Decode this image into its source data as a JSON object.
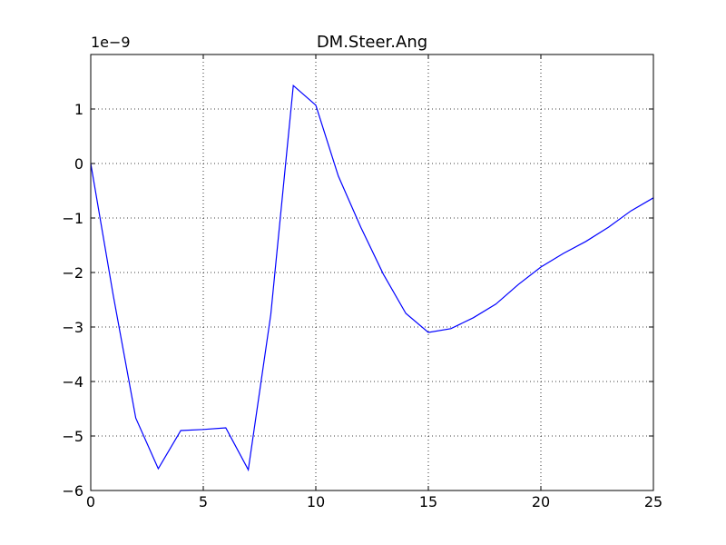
{
  "chart_data": {
    "type": "line",
    "title": "DM.Steer.Ang",
    "y_offset_label": "1e−9",
    "x": [
      0,
      1,
      2,
      3,
      4,
      5,
      6,
      7,
      8,
      9,
      10,
      11,
      12,
      13,
      14,
      15,
      16,
      17,
      18,
      19,
      20,
      21,
      22,
      23,
      24,
      25
    ],
    "values": [
      0,
      -2.42,
      -4.67,
      -5.6,
      -4.9,
      -4.88,
      -4.85,
      -5.62,
      -2.77,
      1.43,
      1.07,
      -0.23,
      -1.17,
      -2.03,
      -2.75,
      -3.1,
      -3.03,
      -2.83,
      -2.58,
      -2.22,
      -1.9,
      -1.65,
      -1.43,
      -1.17,
      -0.87,
      -0.63
    ],
    "color": "#0000ff",
    "xlim": [
      0,
      25
    ],
    "xticks": [
      0,
      5,
      10,
      15,
      20,
      25
    ],
    "ylim": [
      -6,
      2
    ],
    "yticks": [
      {
        "value": -6,
        "label": "−6"
      },
      {
        "value": -5,
        "label": "−5"
      },
      {
        "value": -4,
        "label": "−4"
      },
      {
        "value": -3,
        "label": "−3"
      },
      {
        "value": -2,
        "label": "−2"
      },
      {
        "value": -1,
        "label": "−1"
      },
      0,
      1
    ],
    "grid": true
  }
}
